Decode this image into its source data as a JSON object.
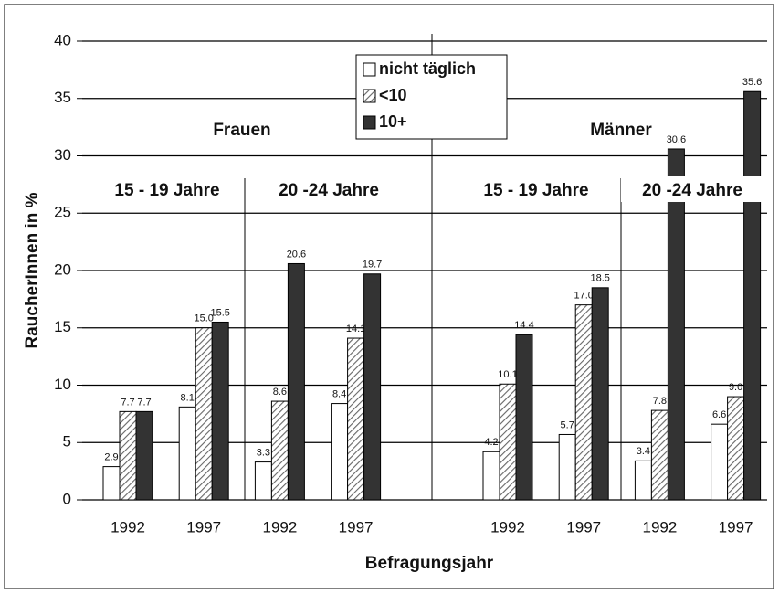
{
  "chart_data": {
    "type": "bar",
    "y_label": "RaucherInnen in %",
    "x_label": "Befragungsjahr",
    "categories": [
      "1992",
      "1997",
      "1992",
      "1997",
      null,
      "1992",
      "1997",
      "1992",
      "1997"
    ],
    "series": [
      {
        "name": "nicht täglich",
        "color": "#ffffff",
        "values": [
          2.9,
          8.1,
          3.3,
          8.4,
          null,
          4.2,
          5.7,
          3.4,
          6.6
        ],
        "value_labels": [
          "2.9",
          "8.1",
          "3.3",
          "8.4",
          null,
          "4.2",
          "5.7",
          "3.4",
          "6.6"
        ]
      },
      {
        "name": "<10",
        "color": "#666666",
        "pattern": "hatch",
        "values": [
          7.7,
          15.0,
          8.6,
          14.1,
          null,
          10.1,
          17.0,
          7.8,
          9.0
        ],
        "value_labels": [
          "7.7",
          "15.0",
          "8.6",
          "14.1",
          null,
          "10.1",
          "17.0",
          "7.8",
          "9.0"
        ]
      },
      {
        "name": "10+",
        "color": "#333333",
        "values": [
          7.7,
          15.5,
          20.6,
          19.7,
          null,
          14.4,
          18.5,
          30.6,
          35.6
        ],
        "value_labels": [
          "7.7",
          "15.5",
          "20.6",
          "19.7",
          null,
          "14.4",
          "18.5",
          "30.6",
          "35.6"
        ]
      }
    ],
    "annotations": [
      "Frauen",
      "Männer",
      "15 - 19 Jahre",
      "20 -24 Jahre",
      "15 - 19 Jahre",
      "20 -24 Jahre"
    ],
    "ylim": [
      0,
      40
    ],
    "yticks": [
      0,
      5,
      10,
      15,
      20,
      25,
      30,
      35,
      40
    ],
    "grid": true
  }
}
